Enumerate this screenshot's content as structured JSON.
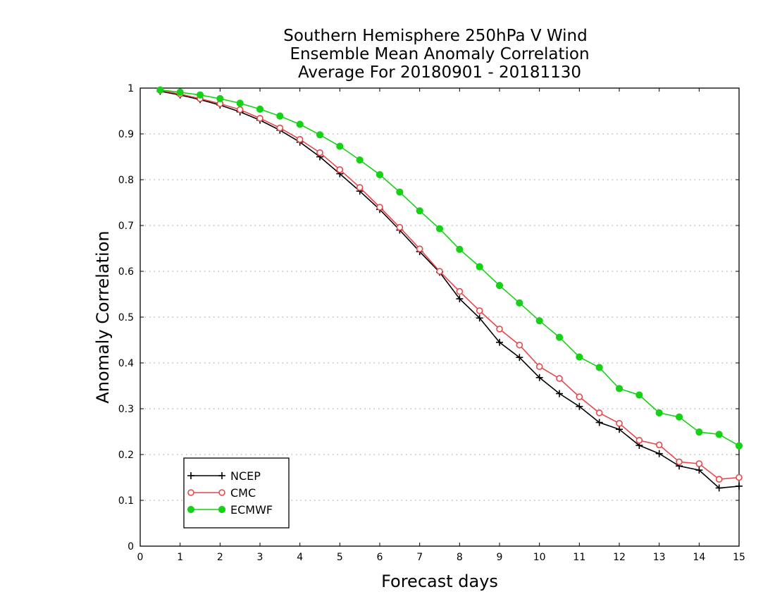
{
  "chart_data": {
    "type": "line",
    "title": [
      "Southern Hemisphere 250hPa V Wind",
      "Ensemble Mean Anomaly Correlation",
      "Average For 20180901 - 20181130"
    ],
    "xlabel": "Forecast days",
    "ylabel": "Anomaly Correlation",
    "xlim": [
      0,
      15
    ],
    "ylim": [
      0,
      1
    ],
    "xticks": [
      "0",
      "1",
      "2",
      "3",
      "4",
      "5",
      "6",
      "7",
      "8",
      "9",
      "10",
      "11",
      "12",
      "13",
      "14",
      "15"
    ],
    "yticks": [
      "0",
      "0.1",
      "0.2",
      "0.3",
      "0.4",
      "0.5",
      "0.6",
      "0.7",
      "0.8",
      "0.9",
      "1"
    ],
    "grid": "horizontal-dotted",
    "legend_position": "bottom-left",
    "x": [
      0.5,
      1,
      1.5,
      2,
      2.5,
      3,
      3.5,
      4,
      4.5,
      5,
      5.5,
      6,
      6.5,
      7,
      7.5,
      8,
      8.5,
      9,
      9.5,
      10,
      10.5,
      11,
      11.5,
      12,
      12.5,
      13,
      13.5,
      14,
      14.5,
      15
    ],
    "series": [
      {
        "name": "NCEP",
        "color": "#000000",
        "marker": "plus",
        "values": [
          0.993,
          0.985,
          0.975,
          0.963,
          0.948,
          0.93,
          0.908,
          0.882,
          0.85,
          0.813,
          0.775,
          0.735,
          0.69,
          0.643,
          0.598,
          0.54,
          0.498,
          0.445,
          0.412,
          0.368,
          0.333,
          0.305,
          0.27,
          0.255,
          0.22,
          0.202,
          0.175,
          0.166,
          0.127,
          0.131
        ]
      },
      {
        "name": "CMC",
        "color": "#e8474a",
        "marker": "open-circle",
        "values": [
          0.995,
          0.987,
          0.977,
          0.966,
          0.953,
          0.934,
          0.913,
          0.888,
          0.859,
          0.822,
          0.783,
          0.74,
          0.696,
          0.649,
          0.6,
          0.556,
          0.514,
          0.474,
          0.439,
          0.392,
          0.366,
          0.326,
          0.291,
          0.268,
          0.231,
          0.221,
          0.184,
          0.18,
          0.146,
          0.15
        ]
      },
      {
        "name": "ECMWF",
        "color": "#16d216",
        "marker": "filled-circle",
        "values": [
          0.996,
          0.991,
          0.985,
          0.977,
          0.967,
          0.954,
          0.939,
          0.921,
          0.898,
          0.873,
          0.843,
          0.811,
          0.773,
          0.732,
          0.693,
          0.648,
          0.61,
          0.569,
          0.531,
          0.492,
          0.456,
          0.413,
          0.39,
          0.344,
          0.33,
          0.291,
          0.282,
          0.249,
          0.244,
          0.219
        ]
      }
    ]
  }
}
